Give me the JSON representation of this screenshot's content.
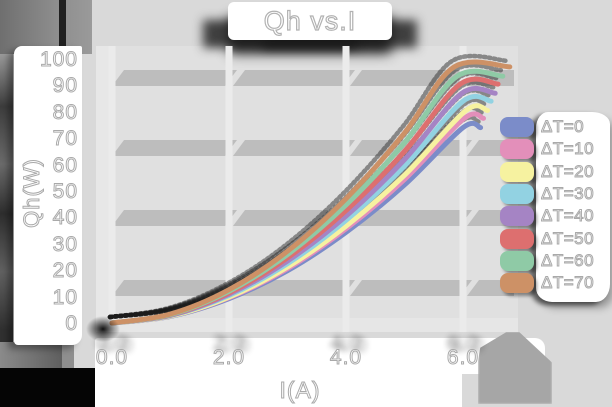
{
  "title": "Qh vs.I",
  "axes": {
    "x_label": "I(A)",
    "y_label": "Qh(W)"
  },
  "colors": {
    "page_bg": "#d9d9d9",
    "plot_bg": "#e0e0e0",
    "grid_band": "#bdbdbd",
    "grid_column": "#ebebeb",
    "label_fill": "#ffffff",
    "label_outline": "#a9a9a9",
    "shadow": "#1a1a1a"
  },
  "chart_data": {
    "type": "line",
    "title": "Qh vs.I",
    "xlabel": "I(A)",
    "ylabel": "Qh(W)",
    "xlim": [
      0,
      6.9
    ],
    "ylim": [
      0,
      106
    ],
    "xtick_labels": [
      "0.0",
      "2.0",
      "4.0",
      "6.0"
    ],
    "xtick_values": [
      0,
      2,
      4,
      6
    ],
    "ytick_labels": [
      "0",
      "10",
      "20",
      "30",
      "40",
      "50",
      "60",
      "70",
      "80",
      "90",
      "100"
    ],
    "ytick_values": [
      0,
      10,
      20,
      30,
      40,
      50,
      60,
      70,
      80,
      90,
      100
    ],
    "grid": "banded-horizontal",
    "legend_position": "right",
    "series": [
      {
        "name": "ΔT=0",
        "color": "#7b8cc9",
        "points": [
          [
            0,
            0
          ],
          [
            1,
            2.5
          ],
          [
            2,
            9.2
          ],
          [
            3,
            19.8
          ],
          [
            4,
            34.3
          ],
          [
            5,
            52.3
          ],
          [
            6.0,
            74
          ],
          [
            6.3,
            74
          ]
        ]
      },
      {
        "name": "ΔT=10",
        "color": "#e38fba",
        "points": [
          [
            0,
            0
          ],
          [
            1,
            2.6
          ],
          [
            2,
            9.6
          ],
          [
            3,
            20.6
          ],
          [
            4,
            35.7
          ],
          [
            5,
            54.4
          ],
          [
            6.02,
            77.5
          ],
          [
            6.35,
            77.5
          ]
        ]
      },
      {
        "name": "ΔT=20",
        "color": "#f6f2a0",
        "points": [
          [
            0,
            0
          ],
          [
            1,
            2.6
          ],
          [
            2,
            9.8
          ],
          [
            3,
            21.2
          ],
          [
            4,
            36.7
          ],
          [
            5,
            56.0
          ],
          [
            6.05,
            80.5
          ],
          [
            6.42,
            80.5
          ]
        ]
      },
      {
        "name": "ΔT=30",
        "color": "#92d2e2",
        "points": [
          [
            0,
            0
          ],
          [
            1,
            2.8
          ],
          [
            2,
            10.4
          ],
          [
            3,
            22.5
          ],
          [
            4,
            38.9
          ],
          [
            5,
            59.4
          ],
          [
            6.0,
            84
          ],
          [
            6.48,
            84
          ]
        ]
      },
      {
        "name": "ΔT=40",
        "color": "#a584c4",
        "points": [
          [
            0,
            0
          ],
          [
            1,
            2.9
          ],
          [
            2,
            10.9
          ],
          [
            3,
            23.5
          ],
          [
            4,
            40.5
          ],
          [
            5,
            61.9
          ],
          [
            5.98,
            87
          ],
          [
            6.55,
            87
          ]
        ]
      },
      {
        "name": "ΔT=50",
        "color": "#dd6f6f",
        "points": [
          [
            0,
            0
          ],
          [
            1,
            3.1
          ],
          [
            2,
            11.4
          ],
          [
            3,
            24.7
          ],
          [
            4,
            42.6
          ],
          [
            5,
            65.0
          ],
          [
            5.95,
            90.5
          ],
          [
            6.6,
            90.5
          ]
        ]
      },
      {
        "name": "ΔT=60",
        "color": "#8fcaa6",
        "points": [
          [
            0,
            0
          ],
          [
            1,
            3.2
          ],
          [
            2,
            12.0
          ],
          [
            3,
            25.9
          ],
          [
            4,
            44.7
          ],
          [
            5,
            68.3
          ],
          [
            5.9,
            93.5
          ],
          [
            6.68,
            93.5
          ]
        ]
      },
      {
        "name": "ΔT=70",
        "color": "#cd9166",
        "points": [
          [
            0,
            0
          ],
          [
            1,
            3.4
          ],
          [
            2,
            12.6
          ],
          [
            3,
            27.2
          ],
          [
            4,
            47.1
          ],
          [
            5,
            72.0
          ],
          [
            5.85,
            97
          ],
          [
            6.8,
            97
          ]
        ]
      }
    ]
  }
}
